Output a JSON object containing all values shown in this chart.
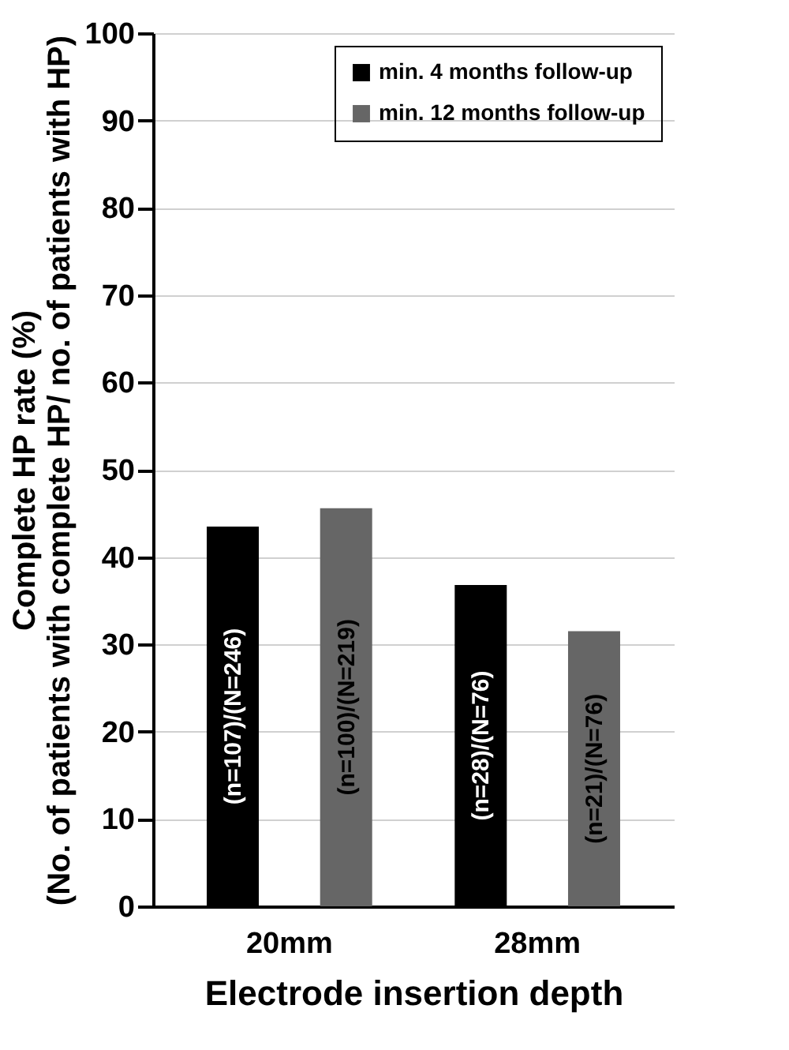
{
  "chart_data": {
    "type": "bar",
    "xlabel": "Electrode insertion depth",
    "ylabel": "Complete HP rate (%)\n(No. of patients with complete HP/ no. of patients with HP)",
    "categories": [
      "20mm",
      "28mm"
    ],
    "series": [
      {
        "name": "min. 4 months follow-up",
        "color": "#000000",
        "values": [
          43.5,
          36.8
        ],
        "value_labels": [
          "(n=107)/(N=246)",
          "(n=28)/(N=76)"
        ]
      },
      {
        "name": "min. 12 months follow-up",
        "color": "#666666",
        "values": [
          45.6,
          31.5
        ],
        "value_labels": [
          "(n=100)/(N=219)",
          "(n=21)/(N=76)"
        ]
      }
    ],
    "ylim": [
      0,
      100
    ],
    "yticks": [
      0,
      10,
      20,
      30,
      40,
      50,
      60,
      70,
      80,
      90,
      100
    ],
    "grid": "y",
    "legend": "top right"
  }
}
